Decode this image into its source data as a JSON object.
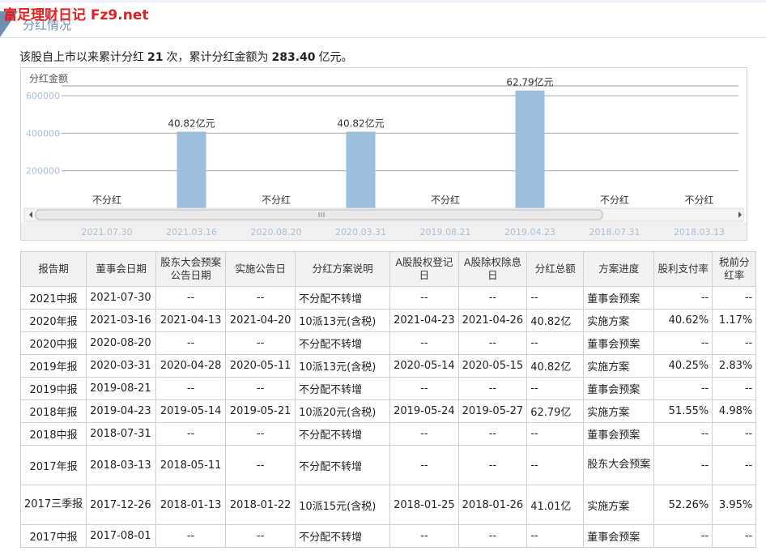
{
  "watermark": "富足理财日记 Fz9.net",
  "section_title": "分红情况",
  "summary": {
    "prefix": "该股自上市以来累计分红",
    "count": "21",
    "mid": "次，累计分红金额为",
    "total": "283.40",
    "suffix": "亿元。"
  },
  "chart_data": {
    "type": "bar",
    "ylabel": "分红金额",
    "yticks": [
      "200000",
      "400000",
      "600000"
    ],
    "ylim": [
      0,
      700000
    ],
    "categories": [
      "2021.07.30",
      "2021.03.16",
      "2020.08.20",
      "2020.03.31",
      "2019.08.21",
      "2019.04.23",
      "2018.07.31",
      "2018.03.13"
    ],
    "values": [
      0,
      408200,
      0,
      408200,
      0,
      627900,
      0,
      0
    ],
    "labels": [
      "不分红",
      "40.82亿元",
      "不分红",
      "40.82亿元",
      "不分红",
      "62.79亿元",
      "不分红",
      "不分红"
    ],
    "bar_color": "#9bbfdc"
  },
  "table": {
    "headers": [
      "报告期",
      "董事会日期",
      "股东大会预案公告日期",
      "实施公告日",
      "分红方案说明",
      "A股股权登记日",
      "A股除权除息日",
      "分红总额",
      "方案进度",
      "股利支付率",
      "税前分红率"
    ],
    "rows": [
      [
        "2021中报",
        "2021-07-30",
        "--",
        "--",
        "不分配不转增",
        "--",
        "--",
        "--",
        "董事会预案",
        "--",
        "--"
      ],
      [
        "2020年报",
        "2021-03-16",
        "2021-04-13",
        "2021-04-20",
        "10派13元(含税)",
        "2021-04-23",
        "2021-04-26",
        "40.82亿",
        "实施方案",
        "40.62%",
        "1.17%"
      ],
      [
        "2020中报",
        "2020-08-20",
        "--",
        "--",
        "不分配不转增",
        "--",
        "--",
        "--",
        "董事会预案",
        "--",
        "--"
      ],
      [
        "2019年报",
        "2020-03-31",
        "2020-04-28",
        "2020-05-11",
        "10派13元(含税)",
        "2020-05-14",
        "2020-05-15",
        "40.82亿",
        "实施方案",
        "40.25%",
        "2.83%"
      ],
      [
        "2019中报",
        "2019-08-21",
        "--",
        "--",
        "不分配不转增",
        "--",
        "--",
        "--",
        "董事会预案",
        "--",
        "--"
      ],
      [
        "2018年报",
        "2019-04-23",
        "2019-05-14",
        "2019-05-21",
        "10派20元(含税)",
        "2019-05-24",
        "2019-05-27",
        "62.79亿",
        "实施方案",
        "51.55%",
        "4.98%"
      ],
      [
        "2018中报",
        "2018-07-31",
        "--",
        "--",
        "不分配不转增",
        "--",
        "--",
        "--",
        "董事会预案",
        "--",
        "--"
      ],
      [
        "2017年报",
        "2018-03-13",
        "2018-05-11",
        "--",
        "不分配不转增",
        "--",
        "--",
        "--",
        "股东大会预案",
        "--",
        "--"
      ],
      [
        "2017三季报",
        "2017-12-26",
        "2018-01-13",
        "2018-01-22",
        "10派15元(含税)",
        "2018-01-25",
        "2018-01-26",
        "41.01亿",
        "实施方案",
        "52.26%",
        "3.95%"
      ],
      [
        "2017中报",
        "2017-08-01",
        "--",
        "--",
        "不分配不转增",
        "--",
        "--",
        "--",
        "董事会预案",
        "--",
        "--"
      ]
    ]
  }
}
